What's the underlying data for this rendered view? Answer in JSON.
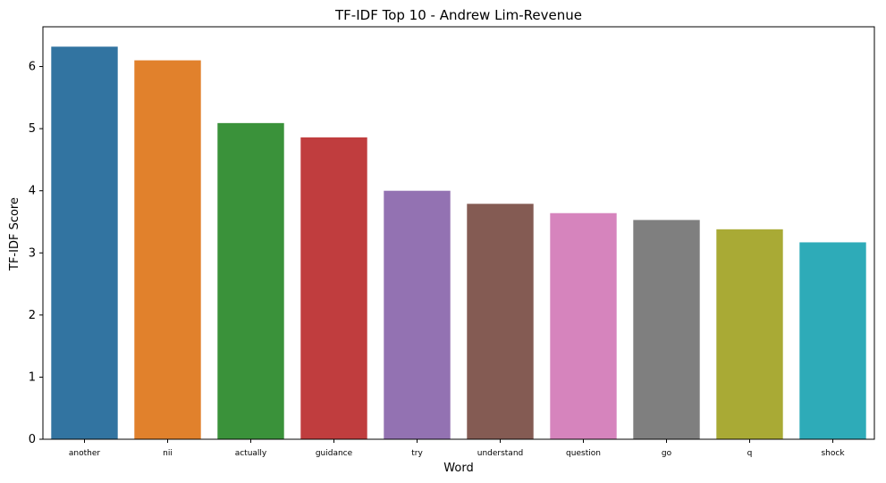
{
  "chart_data": {
    "type": "bar",
    "title": "TF-IDF Top 10 - Andrew Lim-Revenue",
    "xlabel": "Word",
    "ylabel": "TF-IDF Score",
    "categories": [
      "another",
      "nii",
      "actually",
      "guidance",
      "try",
      "understand",
      "question",
      "go",
      "q",
      "shock"
    ],
    "values": [
      6.32,
      6.1,
      5.09,
      4.86,
      4.0,
      3.79,
      3.64,
      3.53,
      3.38,
      3.17
    ],
    "colors": [
      "#3274a1",
      "#e1812c",
      "#3a923a",
      "#c03d3e",
      "#9372b2",
      "#845b53",
      "#d684bd",
      "#7f7f7f",
      "#a9aa35",
      "#2eabb8"
    ],
    "ylim": [
      0,
      6.64
    ],
    "yticks": [
      "0",
      "1",
      "2",
      "3",
      "4",
      "5",
      "6"
    ],
    "grid": false,
    "legend": "none"
  }
}
